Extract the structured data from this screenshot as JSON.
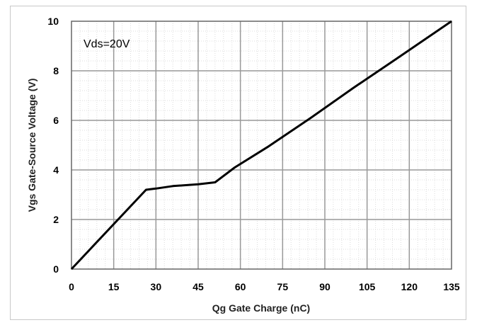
{
  "chart_data": {
    "type": "line",
    "title": "",
    "xlabel": "Qg Gate Charge (nC)",
    "ylabel": "Vgs Gate-Source Voltage (V)",
    "xlim": [
      0,
      135
    ],
    "ylim": [
      0,
      10
    ],
    "x_ticks": [
      0,
      15,
      30,
      45,
      60,
      75,
      90,
      105,
      120,
      135
    ],
    "y_ticks": [
      0,
      2,
      4,
      6,
      8,
      10
    ],
    "x_tick_labels": [
      "0",
      "15",
      "30",
      "45",
      "60",
      "75",
      "90",
      "105",
      "120",
      "135"
    ],
    "y_tick_labels": [
      "0",
      "2",
      "4",
      "6",
      "8",
      "10"
    ],
    "grid": true,
    "minor_grid": true,
    "annotation": "Vds=20V",
    "series": [
      {
        "x": [
          0,
          26.5,
          30,
          36,
          45,
          51,
          58,
          70,
          85,
          100,
          115,
          135
        ],
        "y": [
          0,
          3.2,
          3.25,
          3.35,
          3.42,
          3.5,
          4.1,
          4.95,
          6.1,
          7.3,
          8.45,
          10.0
        ]
      }
    ],
    "line_color": "#000000",
    "grid_color": "#999999",
    "minor_grid_color": "#dcdcdc"
  }
}
